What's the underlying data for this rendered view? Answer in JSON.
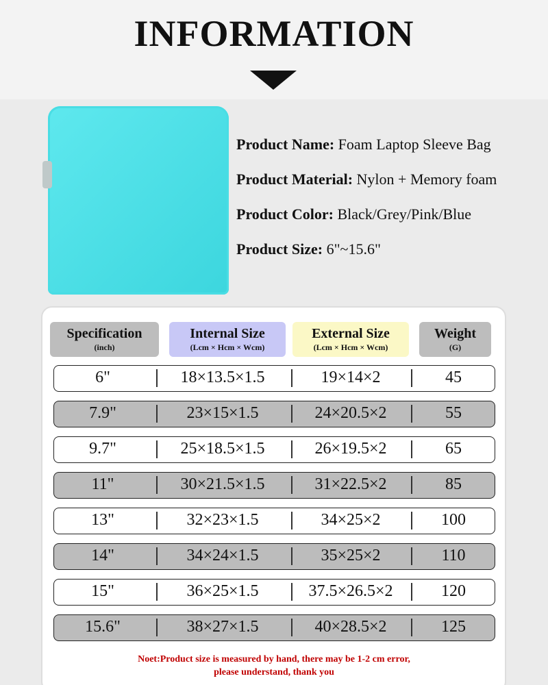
{
  "header": {
    "title": "INFORMATION"
  },
  "product": {
    "fields": [
      {
        "label": "Product Name:",
        "value": "Foam Laptop Sleeve Bag"
      },
      {
        "label": "Product Material:",
        "value": "Nylon + Memory foam"
      },
      {
        "label": "Product Color:",
        "value": "Black/Grey/Pink/Blue"
      },
      {
        "label": "Product Size:",
        "value": "6\"~15.6\""
      }
    ]
  },
  "table": {
    "headers": [
      {
        "title": "Specification",
        "subtitle": "(inch)"
      },
      {
        "title": "Internal Size",
        "subtitle": "(Lcm × Hcm × Wcm)"
      },
      {
        "title": "External Size",
        "subtitle": "(Lcm × Hcm × Wcm)"
      },
      {
        "title": "Weight",
        "subtitle": "(G)"
      }
    ],
    "rows": [
      [
        "6\"",
        "18×13.5×1.5",
        "19×14×2",
        45
      ],
      [
        "7.9\"",
        "23×15×1.5",
        "24×20.5×2",
        55
      ],
      [
        "9.7\"",
        "25×18.5×1.5",
        "26×19.5×2",
        65
      ],
      [
        "11\"",
        "30×21.5×1.5",
        "31×22.5×2",
        85
      ],
      [
        "13\"",
        "32×23×1.5",
        "34×25×2",
        100
      ],
      [
        "14\"",
        "34×24×1.5",
        "35×25×2",
        110
      ],
      [
        "15\"",
        "36×25×1.5",
        "37.5×26.5×2",
        120
      ],
      [
        "15.6\"",
        "38×27×1.5",
        "40×28.5×2",
        125
      ]
    ]
  },
  "note": {
    "lines": [
      "Noet:Product size is measured by hand, there may be 1-2 cm error,",
      "please understand, thank you"
    ]
  }
}
